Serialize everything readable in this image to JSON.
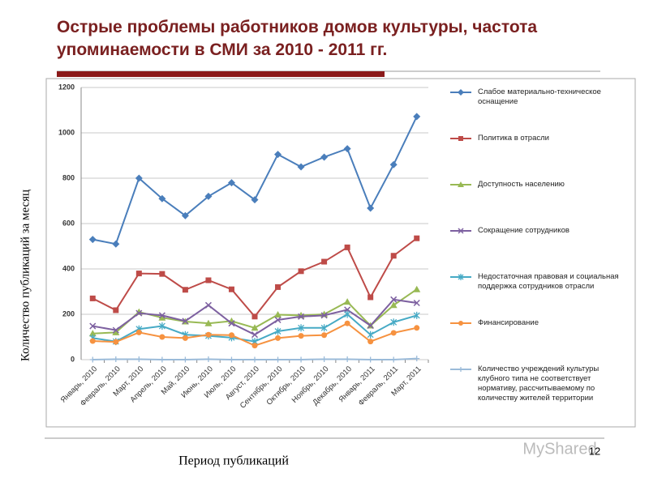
{
  "chart_data": {
    "type": "line",
    "title": "Острые проблемы работников домов культуры, частота упоминаемости в СМИ за 2010 - 2011 гг.",
    "y_label": "Количество публикаций за месяц",
    "x_label": "Период публикаций",
    "slide_number": "12",
    "watermark": "MyShared",
    "categories": [
      "Январь, 2010",
      "Февраль, 2010",
      "Март, 2010",
      "Апрель, 2010",
      "Май, 2010",
      "Июнь, 2010",
      "Июль, 2010",
      "Август, 2010",
      "Сентябрь, 2010",
      "Октябрь, 2010",
      "Ноябрь, 2010",
      "Декабрь, 2010",
      "Январь, 2011",
      "Февраль, 2011",
      "Март, 2011"
    ],
    "ylim": [
      0,
      1200
    ],
    "yticks": [
      0,
      200,
      400,
      600,
      800,
      1000,
      1200
    ],
    "grid": true,
    "series": [
      {
        "name": "Слабое материально-техническое оснащение",
        "color": "#4a7ebb",
        "marker": "diamond",
        "values": [
          530,
          510,
          800,
          710,
          635,
          720,
          780,
          705,
          905,
          850,
          893,
          930,
          668,
          860,
          1072
        ]
      },
      {
        "name": "Политика в отрасли",
        "color": "#be4b48",
        "marker": "square",
        "values": [
          270,
          218,
          380,
          378,
          308,
          350,
          310,
          190,
          320,
          390,
          432,
          495,
          275,
          458,
          535
        ]
      },
      {
        "name": "Доступность населению",
        "color": "#98b954",
        "marker": "triangle",
        "values": [
          115,
          120,
          210,
          185,
          168,
          160,
          170,
          140,
          198,
          195,
          200,
          255,
          150,
          240,
          310
        ]
      },
      {
        "name": "Сокращение сотрудников",
        "color": "#7d60a0",
        "marker": "x",
        "values": [
          148,
          130,
          205,
          195,
          170,
          240,
          160,
          110,
          175,
          190,
          195,
          220,
          150,
          265,
          250
        ]
      },
      {
        "name": "Недостаточная правовая и социальная поддержка сотрудников отрасли",
        "color": "#46aac5",
        "marker": "star",
        "values": [
          95,
          80,
          135,
          148,
          110,
          105,
          97,
          80,
          125,
          140,
          140,
          200,
          110,
          165,
          195
        ]
      },
      {
        "name": "Финансирование",
        "color": "#f69240",
        "marker": "circle",
        "values": [
          82,
          78,
          120,
          100,
          95,
          110,
          108,
          62,
          95,
          105,
          108,
          160,
          80,
          118,
          140
        ]
      },
      {
        "name": "Количество учреждений культуры клубного типа не соответствует нормативу, рассчитываемому по количеству жителей территории",
        "color": "#9bbbd9",
        "marker": "plus",
        "values": [
          0,
          2,
          2,
          0,
          0,
          2,
          0,
          0,
          0,
          0,
          2,
          2,
          0,
          0,
          5
        ]
      }
    ]
  }
}
